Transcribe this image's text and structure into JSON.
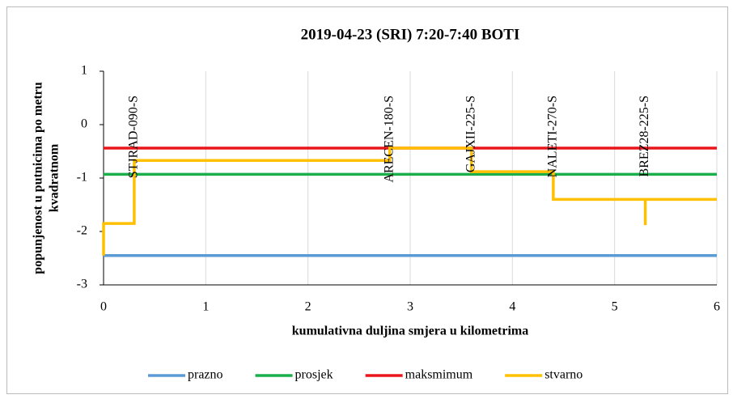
{
  "chart_data": {
    "type": "line",
    "title": "2019-04-23 (SRI) 7:20-7:40 BOTI",
    "x_label": "kumulativna duljina smjera u kilometrima",
    "y_label": [
      "popunjenost u putnicima po metru",
      "kvadratnom"
    ],
    "xlim": [
      0,
      6
    ],
    "xticks": [
      0,
      1,
      2,
      3,
      4,
      5,
      6
    ],
    "ylim": [
      -3,
      1
    ],
    "yticks": [
      -3,
      -2,
      -1,
      0,
      1
    ],
    "grid": "x",
    "legend": "bottom",
    "series": [
      {
        "name": "prazno",
        "color": "#5b9bd5",
        "x": [
          0,
          6
        ],
        "y": [
          -2.45,
          -2.45
        ]
      },
      {
        "name": "prosjek",
        "color": "#1aaf4b",
        "x": [
          0,
          6
        ],
        "y": [
          -0.93,
          -0.93
        ]
      },
      {
        "name": "maksmimum",
        "color": "#e8161b",
        "x": [
          0,
          6
        ],
        "y": [
          -0.44,
          -0.44
        ]
      },
      {
        "name": "stvarno",
        "color": "#ffc000",
        "x": [
          0,
          0,
          0.3,
          0.3,
          2.8,
          2.8,
          3.6,
          3.6,
          3.6,
          3.6,
          4.4,
          4.4,
          5.3,
          5.3,
          5.3,
          6
        ],
        "y": [
          -2.45,
          -1.85,
          -1.85,
          -0.67,
          -0.67,
          -0.44,
          -0.44,
          -0.75,
          -0.88,
          -0.88,
          -0.88,
          -1.4,
          -1.4,
          -1.88,
          -1.4,
          -1.4
        ]
      }
    ],
    "annotations": [
      {
        "text": "STJRAD-090-S",
        "x": 0.3
      },
      {
        "text": "ARECEN-180-S",
        "x": 2.8
      },
      {
        "text": "GAJXII-225-S",
        "x": 3.6
      },
      {
        "text": "NALETI-270-S",
        "x": 4.4
      },
      {
        "text": "BREZ28-225-S",
        "x": 5.3
      }
    ]
  }
}
